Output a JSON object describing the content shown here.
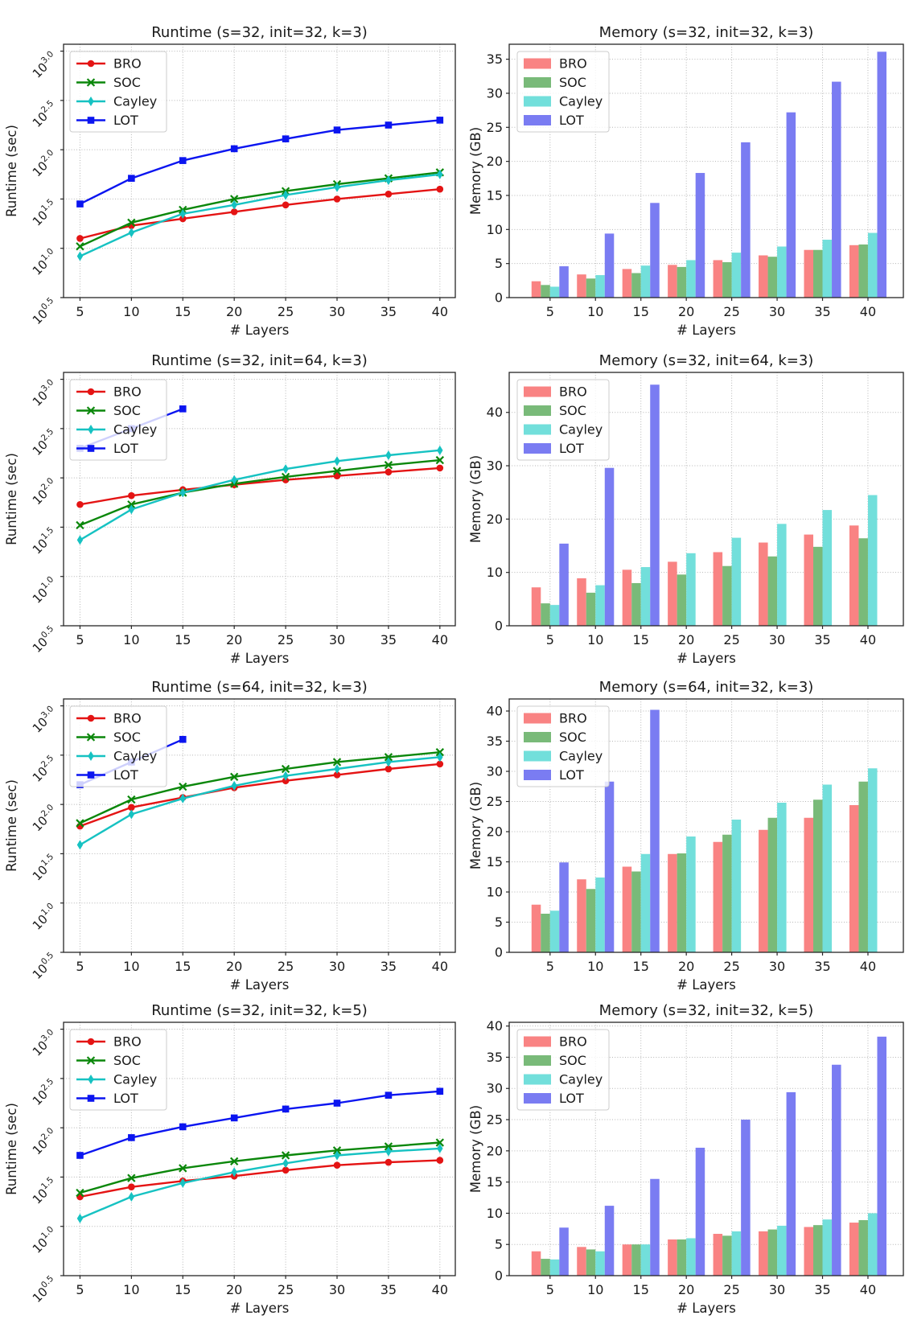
{
  "figure": {
    "background": "#ffffff",
    "grid_color": "#b5b5b5",
    "spine_color": "#262626",
    "text_color": "#1a1a1a",
    "legend_border_color": "#cccccc",
    "rows": 4,
    "cols": 2
  },
  "chart_data": [
    {
      "id": "runtime-s32-init32-k3",
      "type": "line",
      "title": "Runtime (s=32, init=32, k=3)",
      "xlabel": "# Layers",
      "ylabel": "Runtime (sec)",
      "x": [
        5,
        10,
        15,
        20,
        25,
        30,
        35,
        40
      ],
      "xlim": [
        3.4,
        41.5
      ],
      "yscale": "log10",
      "yticks_log10": [
        0.5,
        1.0,
        1.5,
        2.0,
        2.5,
        3.0
      ],
      "ylim_log10": [
        0.5,
        3.07
      ],
      "grid": true,
      "legend_position": "upper left",
      "series": [
        {
          "name": "BRO",
          "color": "#e41414",
          "marker": "circle",
          "values_log10_sec": [
            1.1,
            1.23,
            1.3,
            1.37,
            1.44,
            1.5,
            1.55,
            1.6
          ]
        },
        {
          "name": "SOC",
          "color": "#0b870b",
          "marker": "x",
          "values_log10_sec": [
            1.02,
            1.26,
            1.39,
            1.5,
            1.58,
            1.65,
            1.71,
            1.77
          ]
        },
        {
          "name": "Cayley",
          "color": "#16c2c2",
          "marker": "thin-diamond",
          "values_log10_sec": [
            0.92,
            1.16,
            1.35,
            1.44,
            1.54,
            1.62,
            1.69,
            1.75
          ]
        },
        {
          "name": "LOT",
          "color": "#0b15f0",
          "marker": "square",
          "values_log10_sec": [
            1.45,
            1.71,
            1.89,
            2.01,
            2.11,
            2.2,
            2.25,
            2.3
          ]
        }
      ]
    },
    {
      "id": "memory-s32-init32-k3",
      "type": "bar",
      "title": "Memory (s=32, init=32, k=3)",
      "xlabel": "# Layers",
      "ylabel": "Memory (GB)",
      "categories": [
        5,
        10,
        15,
        20,
        25,
        30,
        35,
        40
      ],
      "xlim": [
        0.5,
        43.9
      ],
      "yticks": [
        0,
        5,
        10,
        15,
        20,
        25,
        30,
        35
      ],
      "ylim": [
        0,
        37.2
      ],
      "bar_width": 1.02,
      "grid": true,
      "legend_position": "upper left",
      "series": [
        {
          "name": "BRO",
          "color": "#f98383",
          "values": [
            2.4,
            3.4,
            4.2,
            4.8,
            5.5,
            6.2,
            7.0,
            7.7
          ]
        },
        {
          "name": "SOC",
          "color": "#79ba79",
          "values": [
            1.85,
            2.8,
            3.6,
            4.5,
            5.2,
            6.0,
            7.0,
            7.8
          ]
        },
        {
          "name": "Cayley",
          "color": "#72dfdb",
          "values": [
            1.6,
            3.3,
            4.7,
            5.5,
            6.6,
            7.5,
            8.5,
            9.5
          ]
        },
        {
          "name": "LOT",
          "color": "#7a7cf2",
          "values": [
            4.6,
            9.4,
            13.9,
            18.3,
            22.8,
            27.2,
            31.7,
            36.1
          ]
        }
      ]
    },
    {
      "id": "runtime-s32-init64-k3",
      "type": "line",
      "title": "Runtime (s=32, init=64, k=3)",
      "xlabel": "# Layers",
      "ylabel": "Runtime (sec)",
      "x": [
        5,
        10,
        15,
        20,
        25,
        30,
        35,
        40
      ],
      "xlim": [
        3.4,
        41.5
      ],
      "yscale": "log10",
      "yticks_log10": [
        0.5,
        1.0,
        1.5,
        2.0,
        2.5,
        3.0
      ],
      "ylim_log10": [
        0.5,
        3.07
      ],
      "grid": true,
      "legend_position": "upper left",
      "series": [
        {
          "name": "BRO",
          "color": "#e41414",
          "marker": "circle",
          "values_log10_sec": [
            1.73,
            1.82,
            1.88,
            1.93,
            1.98,
            2.02,
            2.06,
            2.1
          ]
        },
        {
          "name": "SOC",
          "color": "#0b870b",
          "marker": "x",
          "values_log10_sec": [
            1.52,
            1.73,
            1.85,
            1.94,
            2.01,
            2.07,
            2.13,
            2.18
          ]
        },
        {
          "name": "Cayley",
          "color": "#16c2c2",
          "marker": "thin-diamond",
          "values_log10_sec": [
            1.37,
            1.68,
            1.85,
            1.98,
            2.09,
            2.17,
            2.23,
            2.28
          ]
        },
        {
          "name": "LOT",
          "color": "#0b15f0",
          "marker": "square",
          "x": [
            5,
            10,
            15
          ],
          "values_log10_sec": [
            2.3,
            2.5,
            2.7
          ]
        }
      ]
    },
    {
      "id": "memory-s32-init64-k3",
      "type": "bar",
      "title": "Memory (s=32, init=64, k=3)",
      "xlabel": "# Layers",
      "ylabel": "Memory (GB)",
      "categories": [
        5,
        10,
        15,
        20,
        25,
        30,
        35,
        40
      ],
      "xlim": [
        0.5,
        43.9
      ],
      "yticks": [
        0,
        10,
        20,
        30,
        40
      ],
      "ylim": [
        0,
        47.5
      ],
      "bar_width": 1.02,
      "grid": true,
      "legend_position": "upper left",
      "series": [
        {
          "name": "BRO",
          "color": "#f98383",
          "values": [
            7.2,
            8.9,
            10.5,
            12.0,
            13.8,
            15.6,
            17.1,
            18.8
          ]
        },
        {
          "name": "SOC",
          "color": "#79ba79",
          "values": [
            4.2,
            6.2,
            8.0,
            9.6,
            11.2,
            13.0,
            14.8,
            16.4
          ]
        },
        {
          "name": "Cayley",
          "color": "#72dfdb",
          "values": [
            3.9,
            7.6,
            11.0,
            13.6,
            16.5,
            19.1,
            21.7,
            24.5
          ]
        },
        {
          "name": "LOT",
          "color": "#7a7cf2",
          "values": [
            15.4,
            29.6,
            45.2,
            null,
            null,
            null,
            null,
            null
          ]
        }
      ]
    },
    {
      "id": "runtime-s64-init32-k3",
      "type": "line",
      "title": "Runtime (s=64, init=32, k=3)",
      "xlabel": "# Layers",
      "ylabel": "Runtime (sec)",
      "x": [
        5,
        10,
        15,
        20,
        25,
        30,
        35,
        40
      ],
      "xlim": [
        3.4,
        41.5
      ],
      "yscale": "log10",
      "yticks_log10": [
        0.5,
        1.0,
        1.5,
        2.0,
        2.5,
        3.0
      ],
      "ylim_log10": [
        0.5,
        3.07
      ],
      "grid": true,
      "legend_position": "upper left",
      "series": [
        {
          "name": "BRO",
          "color": "#e41414",
          "marker": "circle",
          "values_log10_sec": [
            1.78,
            1.97,
            2.07,
            2.17,
            2.24,
            2.3,
            2.36,
            2.41
          ]
        },
        {
          "name": "SOC",
          "color": "#0b870b",
          "marker": "x",
          "values_log10_sec": [
            1.81,
            2.05,
            2.18,
            2.28,
            2.36,
            2.43,
            2.48,
            2.53
          ]
        },
        {
          "name": "Cayley",
          "color": "#16c2c2",
          "marker": "thin-diamond",
          "values_log10_sec": [
            1.59,
            1.9,
            2.06,
            2.19,
            2.29,
            2.36,
            2.43,
            2.48
          ]
        },
        {
          "name": "LOT",
          "color": "#0b15f0",
          "marker": "square",
          "x": [
            5,
            10,
            15
          ],
          "values_log10_sec": [
            2.2,
            2.43,
            2.66
          ]
        }
      ]
    },
    {
      "id": "memory-s64-init32-k3",
      "type": "bar",
      "title": "Memory (s=64, init=32, k=3)",
      "xlabel": "# Layers",
      "ylabel": "Memory (GB)",
      "categories": [
        5,
        10,
        15,
        20,
        25,
        30,
        35,
        40
      ],
      "xlim": [
        0.5,
        43.9
      ],
      "yticks": [
        0,
        5,
        10,
        15,
        20,
        25,
        30,
        35,
        40
      ],
      "ylim": [
        0,
        42.0
      ],
      "bar_width": 1.02,
      "grid": true,
      "legend_position": "upper left",
      "series": [
        {
          "name": "BRO",
          "color": "#f98383",
          "values": [
            7.9,
            12.1,
            14.2,
            16.3,
            18.3,
            20.3,
            22.3,
            24.4
          ]
        },
        {
          "name": "SOC",
          "color": "#79ba79",
          "values": [
            6.4,
            10.5,
            13.4,
            16.4,
            19.5,
            22.3,
            25.3,
            28.3
          ]
        },
        {
          "name": "Cayley",
          "color": "#72dfdb",
          "values": [
            6.9,
            12.4,
            16.3,
            19.2,
            22.0,
            24.8,
            27.8,
            30.5
          ]
        },
        {
          "name": "LOT",
          "color": "#7a7cf2",
          "values": [
            14.9,
            28.3,
            40.2,
            null,
            null,
            null,
            null,
            null
          ]
        }
      ]
    },
    {
      "id": "runtime-s32-init32-k5",
      "type": "line",
      "title": "Runtime (s=32, init=32, k=5)",
      "xlabel": "# Layers",
      "ylabel": "Runtime (sec)",
      "x": [
        5,
        10,
        15,
        20,
        25,
        30,
        35,
        40
      ],
      "xlim": [
        3.4,
        41.5
      ],
      "yscale": "log10",
      "yticks_log10": [
        0.5,
        1.0,
        1.5,
        2.0,
        2.5,
        3.0
      ],
      "ylim_log10": [
        0.5,
        3.07
      ],
      "grid": true,
      "legend_position": "upper left",
      "series": [
        {
          "name": "BRO",
          "color": "#e41414",
          "marker": "circle",
          "values_log10_sec": [
            1.3,
            1.4,
            1.46,
            1.51,
            1.57,
            1.62,
            1.65,
            1.67
          ]
        },
        {
          "name": "SOC",
          "color": "#0b870b",
          "marker": "x",
          "values_log10_sec": [
            1.34,
            1.49,
            1.59,
            1.66,
            1.72,
            1.77,
            1.81,
            1.85
          ]
        },
        {
          "name": "Cayley",
          "color": "#16c2c2",
          "marker": "thin-diamond",
          "values_log10_sec": [
            1.08,
            1.3,
            1.44,
            1.55,
            1.64,
            1.72,
            1.76,
            1.79
          ]
        },
        {
          "name": "LOT",
          "color": "#0b15f0",
          "marker": "square",
          "values_log10_sec": [
            1.72,
            1.9,
            2.01,
            2.1,
            2.19,
            2.25,
            2.33,
            2.37
          ]
        }
      ]
    },
    {
      "id": "memory-s32-init32-k5",
      "type": "bar",
      "title": "Memory (s=32, init=32, k=5)",
      "xlabel": "# Layers",
      "ylabel": "Memory (GB)",
      "categories": [
        5,
        10,
        15,
        20,
        25,
        30,
        35,
        40
      ],
      "xlim": [
        0.5,
        43.9
      ],
      "yticks": [
        0,
        5,
        10,
        15,
        20,
        25,
        30,
        35,
        40
      ],
      "ylim": [
        0,
        40.6
      ],
      "bar_width": 1.02,
      "grid": true,
      "legend_position": "upper left",
      "series": [
        {
          "name": "BRO",
          "color": "#f98383",
          "values": [
            3.9,
            4.6,
            5.0,
            5.8,
            6.7,
            7.1,
            7.8,
            8.5
          ]
        },
        {
          "name": "SOC",
          "color": "#79ba79",
          "values": [
            2.7,
            4.2,
            5.0,
            5.8,
            6.4,
            7.4,
            8.1,
            8.9
          ]
        },
        {
          "name": "Cayley",
          "color": "#72dfdb",
          "values": [
            2.6,
            3.9,
            5.0,
            6.0,
            7.1,
            8.0,
            9.0,
            10.0
          ]
        },
        {
          "name": "LOT",
          "color": "#7a7cf2",
          "values": [
            7.7,
            11.2,
            15.5,
            20.5,
            25.0,
            29.4,
            33.8,
            38.3
          ]
        }
      ]
    }
  ]
}
